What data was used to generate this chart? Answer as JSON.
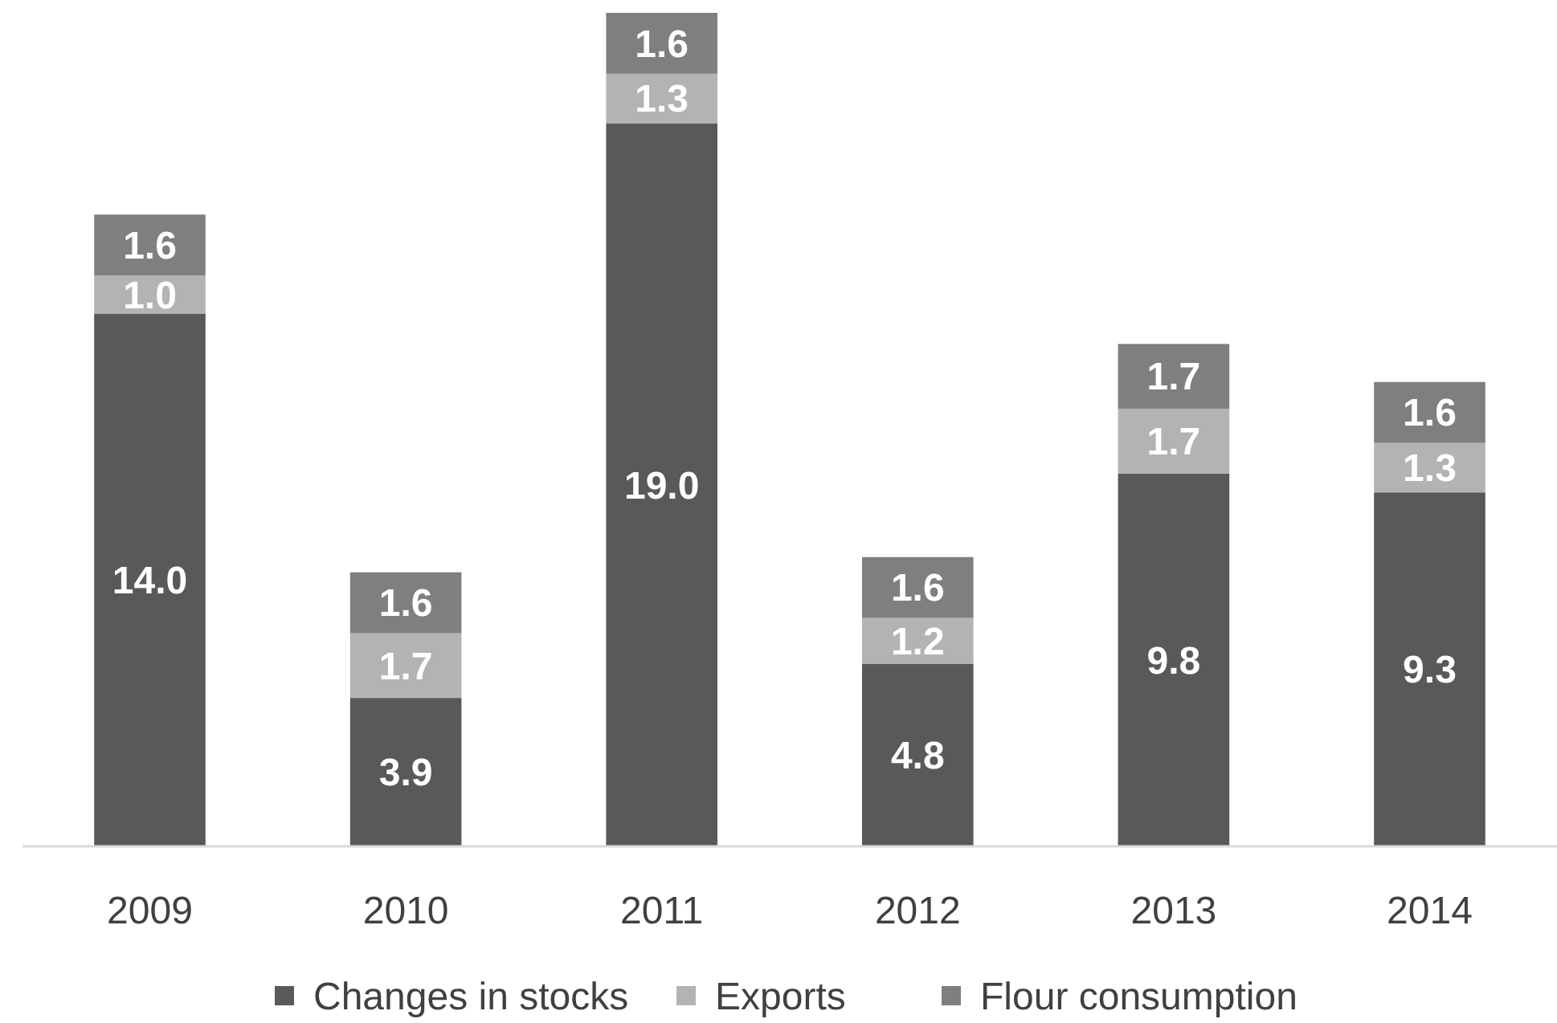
{
  "chart_data": {
    "type": "bar",
    "stacked": true,
    "legend": "bottom",
    "categories": [
      "2009",
      "2010",
      "2011",
      "2012",
      "2013",
      "2014"
    ],
    "series": [
      {
        "name": "Changes in stocks",
        "color": "#595959",
        "values": [
          14.0,
          3.9,
          19.0,
          4.8,
          9.8,
          9.3
        ],
        "value_labels": [
          "14.0",
          "3.9",
          "19.0",
          "4.8",
          "9.8",
          "9.3"
        ]
      },
      {
        "name": "Exports",
        "color": "#b3b3b3",
        "values": [
          1.0,
          1.7,
          1.3,
          1.2,
          1.7,
          1.3
        ],
        "value_labels": [
          "1.0",
          "1.7",
          "1.3",
          "1.2",
          "1.7",
          "1.3"
        ]
      },
      {
        "name": "Flour consumption",
        "color": "#7f7f7f",
        "values": [
          1.6,
          1.6,
          1.6,
          1.6,
          1.7,
          1.6
        ],
        "value_labels": [
          "1.6",
          "1.6",
          "1.6",
          "1.6",
          "1.7",
          "1.6"
        ]
      }
    ]
  }
}
